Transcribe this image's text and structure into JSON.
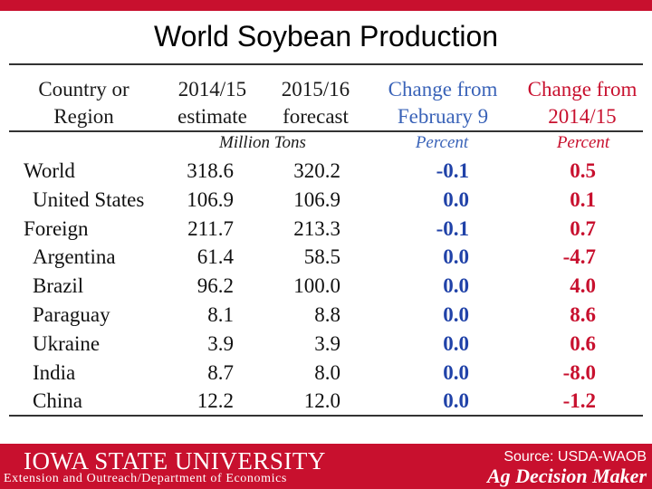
{
  "title": "World Soybean Production",
  "headers": {
    "col1": [
      "Country or",
      "Region"
    ],
    "col2": [
      "2014/15",
      "estimate"
    ],
    "col3": [
      "2015/16",
      "forecast"
    ],
    "col4": [
      "Change from",
      "February 9"
    ],
    "col5": [
      "Change from",
      "2014/15"
    ]
  },
  "units": {
    "tons": "Million Tons",
    "pct1": "Percent",
    "pct2": "Percent"
  },
  "rows": [
    {
      "name": "World",
      "est": "318.6",
      "fc": "320.2",
      "chg_feb": "-0.1",
      "chg_prev": "0.5"
    },
    {
      "name": "United States",
      "est": "106.9",
      "fc": "106.9",
      "chg_feb": "0.0",
      "chg_prev": "0.1"
    },
    {
      "name": "Foreign",
      "est": "211.7",
      "fc": "213.3",
      "chg_feb": "-0.1",
      "chg_prev": "0.7"
    },
    {
      "name": "Argentina",
      "est": "61.4",
      "fc": "58.5",
      "chg_feb": "0.0",
      "chg_prev": "-4.7"
    },
    {
      "name": "Brazil",
      "est": "96.2",
      "fc": "100.0",
      "chg_feb": "0.0",
      "chg_prev": "4.0"
    },
    {
      "name": "Paraguay",
      "est": "8.1",
      "fc": "8.8",
      "chg_feb": "0.0",
      "chg_prev": "8.6"
    },
    {
      "name": "Ukraine",
      "est": "3.9",
      "fc": "3.9",
      "chg_feb": "0.0",
      "chg_prev": "0.6"
    },
    {
      "name": "India",
      "est": "8.7",
      "fc": "8.0",
      "chg_feb": "0.0",
      "chg_prev": "-8.0"
    },
    {
      "name": "China",
      "est": "12.2",
      "fc": "12.0",
      "chg_feb": "0.0",
      "chg_prev": "-1.2"
    }
  ],
  "footer": {
    "university": "IOWA STATE UNIVERSITY",
    "department": "Extension and Outreach/Department of Economics",
    "source": "Source: USDA-WAOB",
    "brand": "Ag Decision Maker"
  },
  "colors": {
    "brand_red": "#c8102e",
    "change_blue": "#2042a8"
  }
}
